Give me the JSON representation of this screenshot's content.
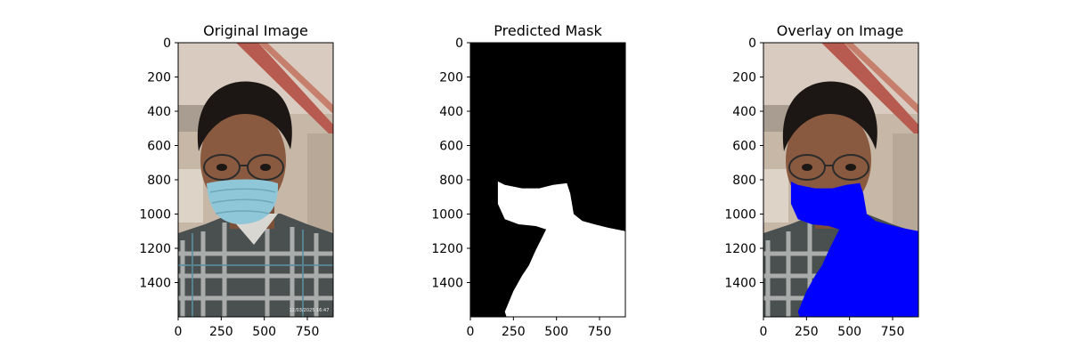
{
  "figure": {
    "background": "#ffffff",
    "panels": [
      {
        "id": "original",
        "title": "Original Image"
      },
      {
        "id": "mask",
        "title": "Predicted Mask"
      },
      {
        "id": "overlay",
        "title": "Overlay on Image"
      }
    ]
  },
  "chart_data": [
    {
      "type": "image",
      "title": "Original Image",
      "xlim": [
        0,
        900
      ],
      "ylim": [
        1600,
        0
      ],
      "x_ticks": [
        0,
        250,
        500,
        750
      ],
      "y_ticks": [
        0,
        200,
        400,
        600,
        800,
        1000,
        1200,
        1400
      ],
      "content": "photo",
      "timestamp_text": "12/03/2025 16:47",
      "colors": {
        "wall": "#c8b7a6",
        "ceiling_beam": "#b75a4f",
        "skin": "#8a5a40",
        "hair": "#1c1714",
        "mask": "#8fc6d8",
        "shirt_dark": "#2f3336",
        "shirt_light": "#c8c9c6"
      }
    },
    {
      "type": "image",
      "title": "Predicted Mask",
      "xlim": [
        0,
        900
      ],
      "ylim": [
        1600,
        0
      ],
      "x_ticks": [
        0,
        250,
        500,
        750
      ],
      "y_ticks": [
        0,
        200,
        400,
        600,
        800,
        1000,
        1200,
        1400
      ],
      "content": "binary_mask",
      "colors": {
        "background": "#000000",
        "foreground": "#ffffff"
      },
      "mask_outline": [
        [
          160,
          810
        ],
        [
          200,
          830
        ],
        [
          300,
          850
        ],
        [
          400,
          850
        ],
        [
          480,
          830
        ],
        [
          560,
          820
        ],
        [
          580,
          880
        ],
        [
          600,
          1000
        ],
        [
          650,
          1040
        ],
        [
          720,
          1060
        ],
        [
          800,
          1080
        ],
        [
          900,
          1100
        ],
        [
          900,
          1600
        ],
        [
          210,
          1600
        ],
        [
          200,
          1570
        ],
        [
          250,
          1450
        ],
        [
          300,
          1360
        ],
        [
          340,
          1300
        ],
        [
          380,
          1210
        ],
        [
          420,
          1130
        ],
        [
          440,
          1090
        ],
        [
          380,
          1070
        ],
        [
          280,
          1060
        ],
        [
          200,
          1030
        ],
        [
          160,
          940
        ]
      ]
    },
    {
      "type": "image",
      "title": "Overlay on Image",
      "xlim": [
        0,
        900
      ],
      "ylim": [
        1600,
        0
      ],
      "x_ticks": [
        0,
        250,
        500,
        750
      ],
      "y_ticks": [
        0,
        200,
        400,
        600,
        800,
        1000,
        1200,
        1400
      ],
      "content": "photo_with_overlay",
      "overlay_color": "#0000ff"
    }
  ]
}
